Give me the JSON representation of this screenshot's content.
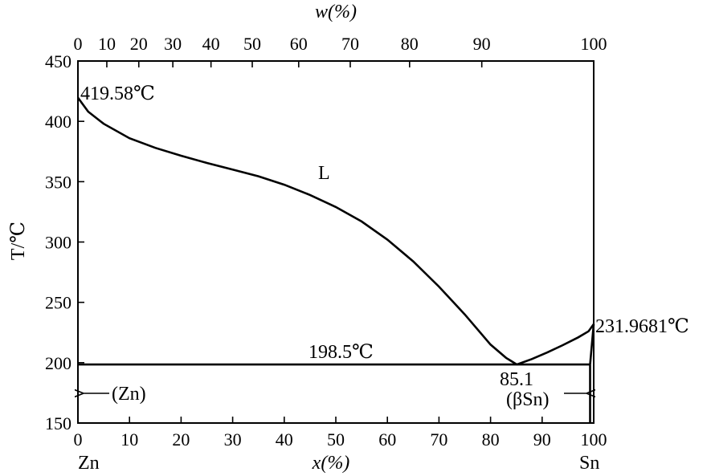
{
  "chart_data": {
    "type": "line",
    "title": "",
    "xlabel_bottom": "x(%)",
    "xlabel_top": "w(%)",
    "ylabel": "T/℃",
    "xlim": [
      0,
      100
    ],
    "ylim": [
      150,
      450
    ],
    "x_ticks": [
      0,
      10,
      20,
      30,
      40,
      50,
      60,
      70,
      80,
      90,
      100
    ],
    "y_ticks": [
      150,
      200,
      250,
      300,
      350,
      400,
      450
    ],
    "w_ticks": [
      0,
      10,
      20,
      30,
      40,
      50,
      60,
      70,
      80,
      90,
      100
    ],
    "w_tick_x_positions": [
      0,
      5.6,
      11.8,
      18.4,
      25.8,
      33.8,
      42.8,
      52.8,
      64.3,
      78.3,
      100
    ],
    "grid": false,
    "series": [
      {
        "x": [
          0,
          2,
          5,
          10,
          15,
          20,
          25,
          30,
          35,
          40,
          45,
          50,
          55,
          60,
          65,
          70,
          75,
          80,
          83,
          85.1
        ],
        "y": [
          419.58,
          408,
          398,
          386,
          378,
          371.5,
          365.5,
          360,
          354.5,
          347.5,
          339,
          329,
          317,
          302,
          284,
          263,
          240,
          215,
          204,
          198.5
        ]
      },
      {
        "x": [
          85.1,
          88,
          91,
          94,
          97,
          99,
          100
        ],
        "y": [
          198.5,
          203,
          208.5,
          214.5,
          221,
          226,
          231.9681
        ]
      },
      {
        "x": [
          0,
          99.3
        ],
        "y": [
          198.5,
          198.5
        ]
      },
      {
        "x": [
          99.3,
          99.3
        ],
        "y": [
          198.5,
          150
        ]
      },
      {
        "x": [
          99.3,
          100
        ],
        "y": [
          198.5,
          231.9681
        ]
      }
    ],
    "annotations": {
      "zn_melting": "419.58℃",
      "liquid": "L",
      "eutectic_temp": "198.5℃",
      "eutectic_comp": "85.1",
      "sn_melting": "231.9681℃",
      "zn_phase": "(Zn)",
      "sn_phase": "(βSn)",
      "left_element": "Zn",
      "right_element": "Sn"
    }
  }
}
